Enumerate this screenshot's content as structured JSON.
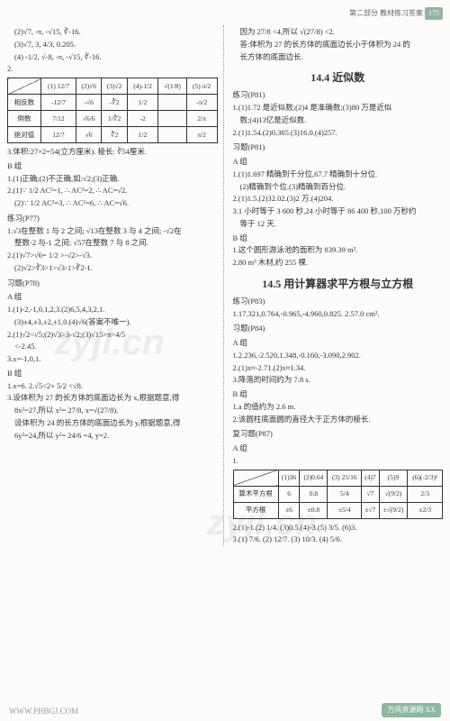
{
  "header": {
    "part": "第二部分  教材练习答案",
    "page": "175"
  },
  "left": {
    "items2": "(2)√7, -π, -√15, ∛-16.",
    "items3": "(3)√7, 3, 4/3, 0.205.",
    "items4": "(4) -1/2, √-8, -π, -√15, ∛-16.",
    "q2": "2.",
    "table1": {
      "headers": [
        "",
        "(1) 12/7",
        "(2)√6",
        "(3)√2",
        "(4)-1/2",
        "√(1/8)",
        "(5) π/2"
      ],
      "rows": [
        [
          "相反数",
          "-12/7",
          "-√6",
          "-∛2",
          "1/2",
          "",
          "-π/2"
        ],
        [
          "倒数",
          "7/12",
          "√6/6",
          "1/∛2",
          "-2",
          "",
          "2/π"
        ],
        [
          "绝对值",
          "12/7",
          "√6",
          "∛2",
          "1/2",
          "",
          "π/2"
        ]
      ]
    },
    "q3": "3.体积:27×2=54(立方厘米). 棱长: ∛54厘米.",
    "groupB1": "B 组",
    "b1_1": "1.(1)正确;(2)不正确,如:√2;(3)正确.",
    "b1_2a": "2.(1)∵ 1/2 AC²=1, ∴ AC²=2, ∴ AC=√2.",
    "b1_2b": "(2)∵ 1/2 AC²=3, ∴ AC²=6, ∴ AC=√6.",
    "lianxi77": "练习(P77)",
    "p77_1a": "1.√3在整数 1 与 2 之间; √13在整数 3 与 4 之间; -√2在",
    "p77_1b": "整数-2 与-1 之间; √57在整数 7 与 8 之间.",
    "p77_2a": "2.(1)√7>√6= 1/2 >-√2>-√3.",
    "p77_2b": "(2)√2>∛3>1>√3-1>∛2-1.",
    "xiti78": "习题(P78)",
    "groupA1": "A 组",
    "a1_1": "1.(1)-2,-1,0,1,2,3.(2)6,5,4,3,2,1.",
    "a1_1b": "(3)±4,±3,±2,±1,0.(4)√6(答案不唯一).",
    "a1_2a": "2.(1)√2<√5;(2)√3>3-√2;(3)√15>π>4/5",
    "a1_2b": "<-2.45.",
    "a1_3": "3.x=-1,0,1.",
    "groupB2": "B 组",
    "b2_1": "1.x=6.    2.√5<2+ 5/2 <√8.",
    "b2_3a": "3.设体积为 27 的长方体的底面边长为 x,根据题意,得",
    "b2_3b": "8x²=27,所以 x²= 27/8, x=√(27/8).",
    "b2_3c": "设体积为 24 的长方体的底面边长为 y,根据题意,得",
    "b2_3d": "6y²=24,所以 y²= 24/6 =4, y=2."
  },
  "right": {
    "top1": "因为 27/8 <4,所以 √(27/8) <2.",
    "top2": "答:体积为 27 的长方体的底面边长小于体积为 24 的",
    "top3": "长方体的底面边长.",
    "sec144": "14.4  近似数",
    "lianxi81": "练习(P81)",
    "p81_1": "1.(1)1.72 是近似数;(2)4 是准确数;(3)80 万是近似",
    "p81_1b": "数;(4)13亿是近似数.",
    "p81_2": "2.(1)1.54.(2)0.365.(3)16.0.(4)257.",
    "xiti81": "习题(P81)",
    "groupA_r": "A 组",
    "a_r1": "1.(1)1.697 精确到千分位,67.7 精确到十分位.",
    "a_r1b": "(2)精确到个位.(3)精确到百分位.",
    "a_r2": "2.(1)1.5.(2)32.02.(3)2 万.(4)204.",
    "a_r3": "3.1 小时等于 3 600 秒,24 小时等于 86 400 秒,100 万秒约",
    "a_r3b": "等于 12 天.",
    "groupB_r": "B 组",
    "b_r1": "1.这个圆形游泳池的面积为 839.39 m².",
    "b_r2": "2.80 m³ 木材,约 255 棵.",
    "sec145": "14.5  用计算器求平方根与立方根",
    "lianxi83": "练习(P83)",
    "p83_1": "1.17.321,0.764,-0.965,-4.960,0.825.    2.57.0 cm².",
    "xiti84": "习题(P84)",
    "groupA_r2": "A 组",
    "a2_r1": "1.2.236,-2.520,1.348,-0.160,-3.090,2.902.",
    "a2_r2": "2.(1)x≈-2.71.(2)x≈1.34.",
    "a2_r3": "3.降落的时间约为 7.8 s.",
    "groupB_r2": "B 组",
    "b2_r1": "1.a 的值约为 2.6 m.",
    "b2_r2": "2.该圆柱底面圆的直径大于正方体的棱长.",
    "fuxi87": "复习题(P87)",
    "groupA_r3": "A 组",
    "q1_r": "1.",
    "table2": {
      "headers": [
        "",
        "(1)36",
        "(2)0.64",
        "(3) 25/16",
        "(4)7",
        "(5)9",
        "(6)(-2/3)²"
      ],
      "rows": [
        [
          "算术平方根",
          "6",
          "0.8",
          "5/4",
          "√7",
          "√(9/2)",
          "2/3"
        ],
        [
          "平方根",
          "±6",
          "±0.8",
          "±5/4",
          "±√7",
          "±√(9/2)",
          "±2/3"
        ]
      ]
    },
    "r2_1": "2.(1)-1.(2) 1/4. (3)0.5.(4)-3.(5) 3/5. (6)3.",
    "r3_1": "3.(1) 7/6. (2) 12/7. (3) 10/3. (4) 5/6."
  },
  "footer": {
    "left": "WWW.PHBGJ.COM",
    "right": "万风资源网 XX"
  }
}
